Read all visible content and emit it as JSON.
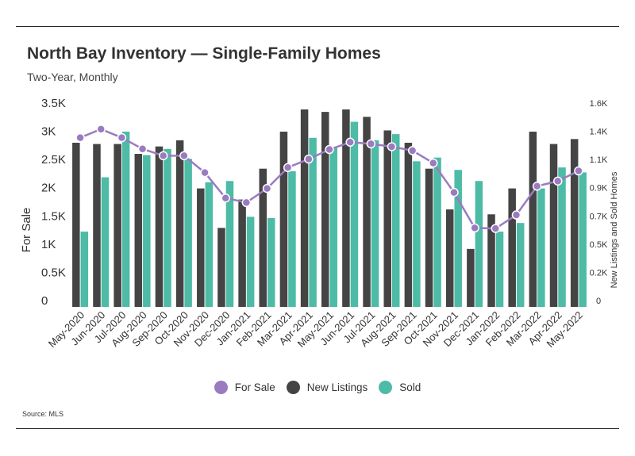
{
  "chart_data": {
    "type": "bar",
    "title": "North Bay Inventory — Single-Family Homes",
    "subtitle": "Two-Year, Monthly",
    "source": "Source:  MLS",
    "ylabel": "For Sale",
    "y2label": "New Listings and Sold Homes",
    "ylim": [
      0,
      3500
    ],
    "y2lim": [
      0,
      1600
    ],
    "yticks": [
      "0",
      "0.5K",
      "1K",
      "1.5K",
      "2K",
      "2.5K",
      "3K",
      "3.5K"
    ],
    "y2ticks": [
      "0",
      "0.2K",
      "0.5K",
      "0.7K",
      "0.9K",
      "1.1K",
      "1.4K",
      "1.6K"
    ],
    "grid": false,
    "legend_position": "bottom",
    "categories": [
      "May-2020",
      "Jun-2020",
      "Jul-2020",
      "Aug-2020",
      "Sep-2020",
      "Oct-2020",
      "Nov-2020",
      "Dec-2020",
      "Jan-2021",
      "Feb-2021",
      "Mar-2021",
      "Apr-2021",
      "May-2021",
      "Jun-2021",
      "Jul-2021",
      "Aug-2021",
      "Sep-2021",
      "Oct-2021",
      "Nov-2021",
      "Dec-2021",
      "Jan-2022",
      "Feb-2022",
      "Mar-2022",
      "Apr-2022",
      "May-2022"
    ],
    "series": [
      {
        "name": "For Sale",
        "type": "line",
        "axis": "left",
        "color": "#9b7bbf",
        "values": [
          3000,
          3150,
          3000,
          2800,
          2680,
          2680,
          2380,
          1930,
          1850,
          2100,
          2470,
          2620,
          2790,
          2920,
          2890,
          2840,
          2770,
          2550,
          2030,
          1400,
          1390,
          1630,
          2140,
          2230,
          2410
        ]
      },
      {
        "name": "New Listings",
        "type": "bar",
        "axis": "right",
        "color": "#444444",
        "values": [
          1330,
          1320,
          1320,
          1240,
          1300,
          1350,
          960,
          640,
          870,
          1120,
          1420,
          1600,
          1580,
          1600,
          1540,
          1430,
          1330,
          1120,
          790,
          470,
          750,
          960,
          1420,
          1320,
          1360
        ]
      },
      {
        "name": "Sold",
        "type": "bar",
        "axis": "right",
        "color": "#4dbba6",
        "values": [
          610,
          1050,
          1420,
          1230,
          1280,
          1200,
          1010,
          1020,
          730,
          720,
          1100,
          1370,
          1290,
          1500,
          1350,
          1400,
          1180,
          1210,
          1110,
          1020,
          610,
          680,
          960,
          1130,
          1090
        ]
      }
    ]
  }
}
